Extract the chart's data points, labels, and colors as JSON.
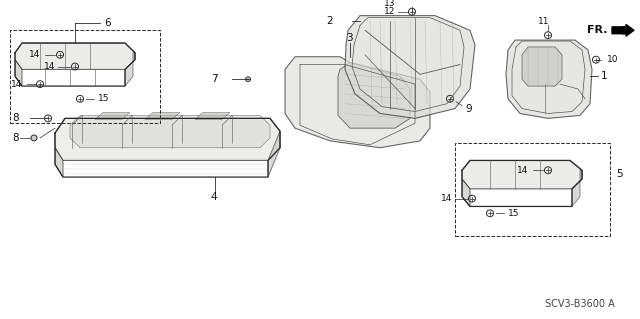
{
  "bg": "#f5f5f0",
  "lc": "#2a2a2a",
  "lc2": "#555555",
  "diagram_code": "SCV3-B3600 A",
  "fig_w": 6.4,
  "fig_h": 3.19,
  "dpi": 100
}
